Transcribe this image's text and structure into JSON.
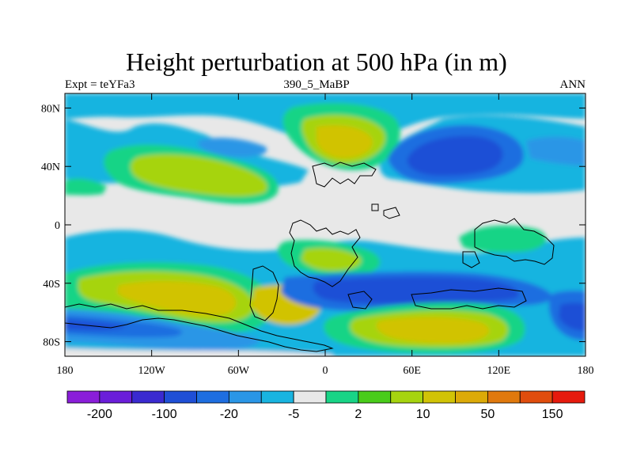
{
  "chart_data": {
    "type": "heatmap",
    "title": "Height perturbation at 500 hPa (in m)",
    "left_string": "Expt = teYFa3",
    "center_string": "390_5_MaBP",
    "right_string": "ANN",
    "x_ticks": [
      "180",
      "120W",
      "60W",
      "0",
      "60E",
      "120E",
      "180"
    ],
    "y_ticks": [
      "80N",
      "40N",
      "0",
      "40S",
      "80S"
    ],
    "xlim": [
      -180,
      180
    ],
    "ylim": [
      -90,
      90
    ],
    "colorbar": {
      "labels": [
        "-200",
        "-100",
        "-20",
        "-5",
        "2",
        "10",
        "50",
        "150"
      ],
      "colors": [
        "#8a1ed9",
        "#6a1ed9",
        "#3a2ad0",
        "#1f4fd6",
        "#1e6ee0",
        "#2a96e6",
        "#19b4e0",
        "#e8e8e8",
        "#19d486",
        "#49cc1a",
        "#a6d40f",
        "#d1c306",
        "#dcaa08",
        "#e0790d",
        "#e04d0d",
        "#e61a0d"
      ]
    }
  }
}
